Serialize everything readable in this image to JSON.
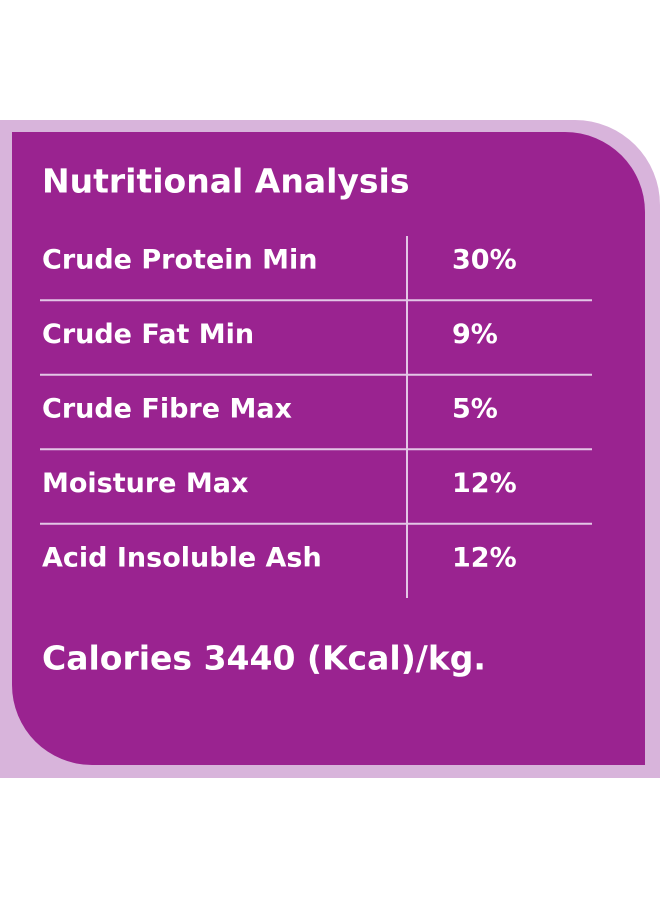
{
  "title": "Nutritional Analysis",
  "table": {
    "rows": [
      [
        "Crude Protein Min",
        "30%"
      ],
      [
        "Crude Fat Min",
        "9%"
      ],
      [
        "Crude Fibre Max",
        "5%"
      ],
      [
        "Moisture Max",
        "12%"
      ],
      [
        "Acid Insoluble Ash",
        "12%"
      ]
    ]
  },
  "footer": "Calories 3440 (Kcal)/kg."
}
